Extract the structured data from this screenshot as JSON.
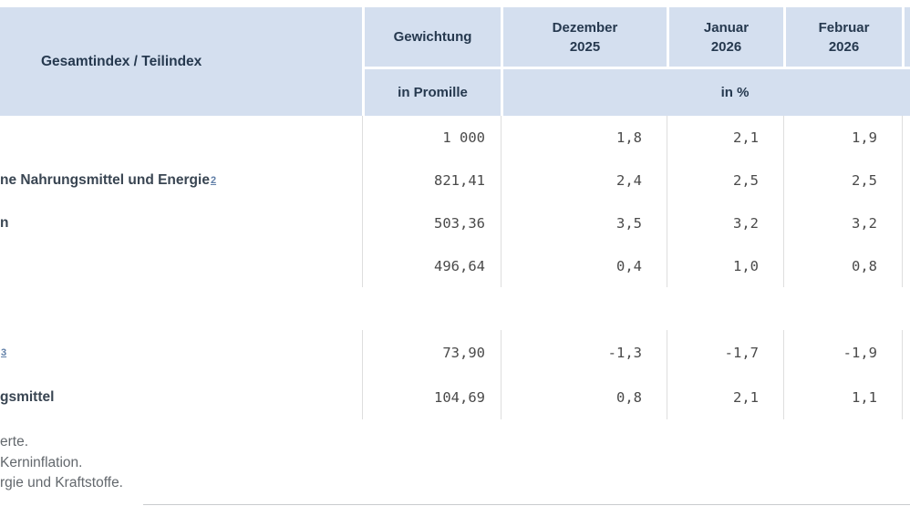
{
  "table": {
    "header": {
      "label": "Gesamtindex / Teilindex",
      "weight": "Gewichtung",
      "weight_unit": "in Promille",
      "percent_unit": "in %",
      "months": [
        {
          "name": "Dezember",
          "year": "2025"
        },
        {
          "name": "Januar",
          "year": "2026"
        },
        {
          "name": "Februar",
          "year": "2026"
        }
      ]
    },
    "rows": [
      {
        "label": "",
        "sup": "",
        "weight": "1 000",
        "values": [
          "1,8",
          "2,1",
          "1,9"
        ]
      },
      {
        "label": "ne Nahrungsmittel und Energie",
        "sup": "2",
        "weight": "821,41",
        "values": [
          "2,4",
          "2,5",
          "2,5"
        ]
      },
      {
        "label": "n",
        "sup": "",
        "weight": "503,36",
        "values": [
          "3,5",
          "3,2",
          "3,2"
        ]
      },
      {
        "label": "",
        "sup": "",
        "weight": "496,64",
        "values": [
          "0,4",
          "1,0",
          "0,8"
        ]
      },
      {
        "label": "",
        "sup": "3",
        "weight": "73,90",
        "values": [
          "-1,3",
          "-1,7",
          "-1,9"
        ]
      },
      {
        "label": "gsmittel",
        "sup": "",
        "weight": "104,69",
        "values": [
          "0,8",
          "2,1",
          "1,1"
        ]
      }
    ],
    "footnotes": [
      "erte.",
      "Kerninflation.",
      "rgie und Kraftstoffe."
    ]
  },
  "colors": {
    "header_bg": "#d4dfef",
    "header_text": "#26394f",
    "label_text": "#394552",
    "number_text": "#4a4a4a",
    "grid_line": "#dedede",
    "footnote_link": "#5f7ea7",
    "footnote_text": "#63686d"
  },
  "chart_data": {
    "type": "table",
    "title": "Gesamtindex / Teilindex",
    "columns": [
      "Gesamtindex / Teilindex",
      "Gewichtung in Promille",
      "Dezember 2025 in %",
      "Januar 2026 in %",
      "Februar 2026 in %"
    ],
    "rows": [
      [
        "",
        "1 000",
        "1,8",
        "2,1",
        "1,9"
      ],
      [
        "ne Nahrungsmittel und Energie²",
        "821,41",
        "2,4",
        "2,5",
        "2,5"
      ],
      [
        "n",
        "503,36",
        "3,5",
        "3,2",
        "3,2"
      ],
      [
        "",
        "496,64",
        "0,4",
        "1,0",
        "0,8"
      ],
      [
        "³",
        "73,90",
        "-1,3",
        "-1,7",
        "-1,9"
      ],
      [
        "gsmittel",
        "104,69",
        "0,8",
        "2,1",
        "1,1"
      ]
    ],
    "footnotes": [
      "erte.",
      "Kerninflation.",
      "rgie und Kraftstoffe."
    ]
  }
}
